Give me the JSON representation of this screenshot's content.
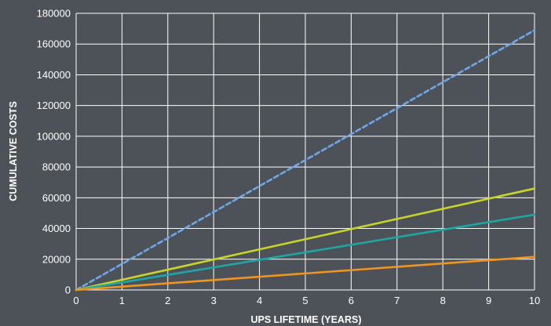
{
  "chart_data": {
    "type": "line",
    "xlabel": "UPS LIFETIME (YEARS)",
    "ylabel": "CUMULATIVE COSTS",
    "xlim": [
      0,
      10
    ],
    "ylim": [
      0,
      180000
    ],
    "x_ticks": [
      0,
      1,
      2,
      3,
      4,
      5,
      6,
      7,
      8,
      9,
      10
    ],
    "y_ticks": [
      0,
      20000,
      40000,
      60000,
      80000,
      100000,
      120000,
      140000,
      160000,
      180000
    ],
    "grid": true,
    "background_color": "#4d5259",
    "series": [
      {
        "color": "#6fa8e8",
        "dashed": true,
        "x": [
          0,
          10
        ],
        "y": [
          0,
          169000
        ]
      },
      {
        "color": "#c8d42a",
        "dashed": false,
        "x": [
          0,
          10
        ],
        "y": [
          0,
          66000
        ]
      },
      {
        "color": "#1ea6a6",
        "dashed": false,
        "x": [
          0,
          10
        ],
        "y": [
          0,
          49000
        ]
      },
      {
        "color": "#f0961e",
        "dashed": false,
        "x": [
          0,
          10
        ],
        "y": [
          0,
          21500
        ]
      }
    ]
  }
}
